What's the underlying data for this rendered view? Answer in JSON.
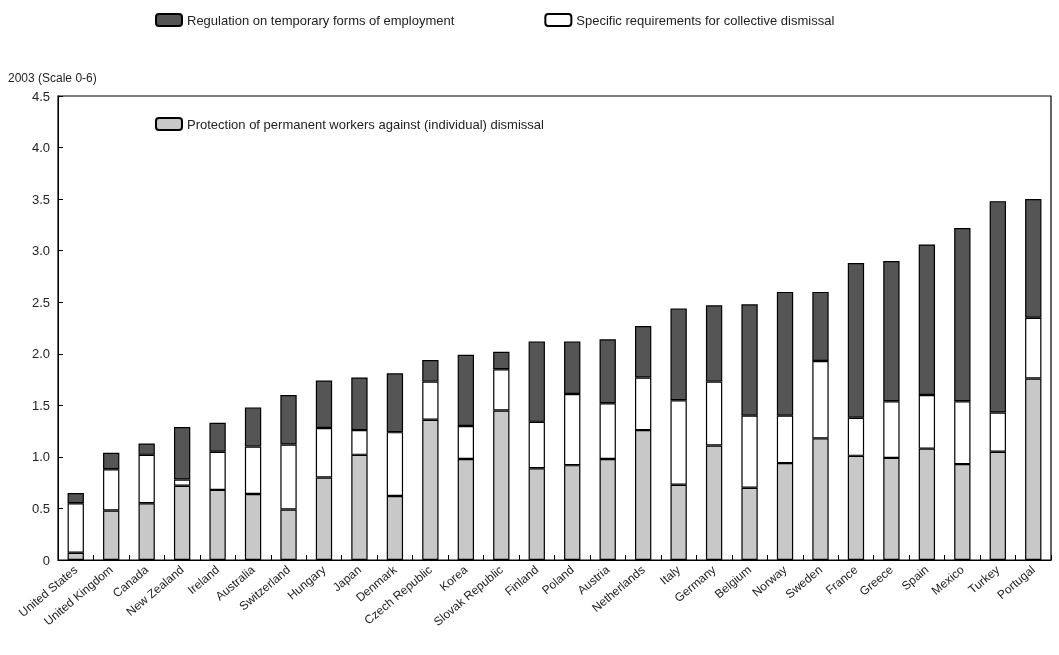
{
  "chart_data": {
    "type": "bar",
    "stacked": true,
    "ylabel": "2003 (Scale 0-6)",
    "categories": [
      "United States",
      "United Kingdom",
      "Canada",
      "New Zealand",
      "Ireland",
      "Australia",
      "Switzerland",
      "Hungary",
      "Japan",
      "Denmark",
      "Czech Republic",
      "Korea",
      "Slovak Republic",
      "Finland",
      "Poland",
      "Austria",
      "Netherlands",
      "Italy",
      "Germany",
      "Belgium",
      "Norway",
      "Sweden",
      "France",
      "Greece",
      "Spain",
      "Mexico",
      "Turkey",
      "Portugal"
    ],
    "series": [
      {
        "name": "Protection of permanent workers against (individual) dismissal",
        "color": "#c8c8c8",
        "values": [
          0.07,
          0.48,
          0.55,
          0.72,
          0.68,
          0.64,
          0.49,
          0.8,
          1.02,
          0.62,
          1.36,
          0.98,
          1.45,
          0.89,
          0.92,
          0.98,
          1.26,
          0.73,
          1.11,
          0.7,
          0.94,
          1.18,
          1.01,
          0.99,
          1.08,
          0.93,
          1.05,
          1.76
        ]
      },
      {
        "name": "Specific requirements for collective dismissal",
        "color": "#ffffff",
        "values": [
          0.48,
          0.4,
          0.47,
          0.06,
          0.37,
          0.46,
          0.63,
          0.48,
          0.24,
          0.62,
          0.37,
          0.32,
          0.4,
          0.45,
          0.69,
          0.54,
          0.51,
          0.82,
          0.62,
          0.7,
          0.46,
          0.75,
          0.37,
          0.55,
          0.52,
          0.61,
          0.38,
          0.59
        ]
      },
      {
        "name": "Regulation on temporary forms of employment",
        "color": "#555555",
        "values": [
          0.1,
          0.16,
          0.11,
          0.51,
          0.28,
          0.38,
          0.48,
          0.46,
          0.51,
          0.57,
          0.21,
          0.69,
          0.17,
          0.78,
          0.51,
          0.62,
          0.5,
          0.89,
          0.74,
          1.08,
          1.2,
          0.67,
          1.5,
          1.36,
          1.46,
          1.68,
          2.05,
          1.15
        ]
      }
    ],
    "ylim": [
      0,
      4.5
    ],
    "yticks": [
      0,
      0.5,
      {
        "value": 1,
        "label": "1.0"
      },
      1.5,
      {
        "value": 2,
        "label": "2.0"
      },
      2.5,
      {
        "value": 3,
        "label": "3.0"
      },
      3.5,
      {
        "value": 4,
        "label": "4.0"
      },
      4.5
    ],
    "grid": false,
    "legend": "top left"
  }
}
